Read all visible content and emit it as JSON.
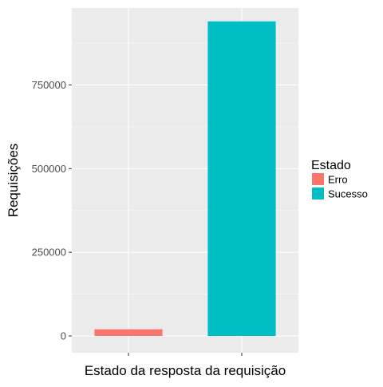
{
  "chart_data": {
    "type": "bar",
    "categories": [
      "Erro",
      "Sucesso"
    ],
    "values": [
      20000,
      940000
    ],
    "xlabel": "Estado da resposta da requisição",
    "ylabel": "Requisições",
    "ylim": [
      -50000,
      980000
    ],
    "yticks": [
      0,
      250000,
      500000,
      750000
    ],
    "ytick_labels": [
      "0",
      "250000",
      "500000",
      "750000"
    ],
    "grid": true,
    "legend": {
      "title": "Estado",
      "placement": "right",
      "entries": [
        {
          "label": "Erro",
          "color": "#F8766D"
        },
        {
          "label": "Sucesso",
          "color": "#00BFC4"
        }
      ]
    },
    "colors": {
      "panel_background": "#EBEBEB",
      "grid_line": "#FFFFFF",
      "axis_text": "#4D4D4D",
      "title_text": "#000000"
    }
  }
}
